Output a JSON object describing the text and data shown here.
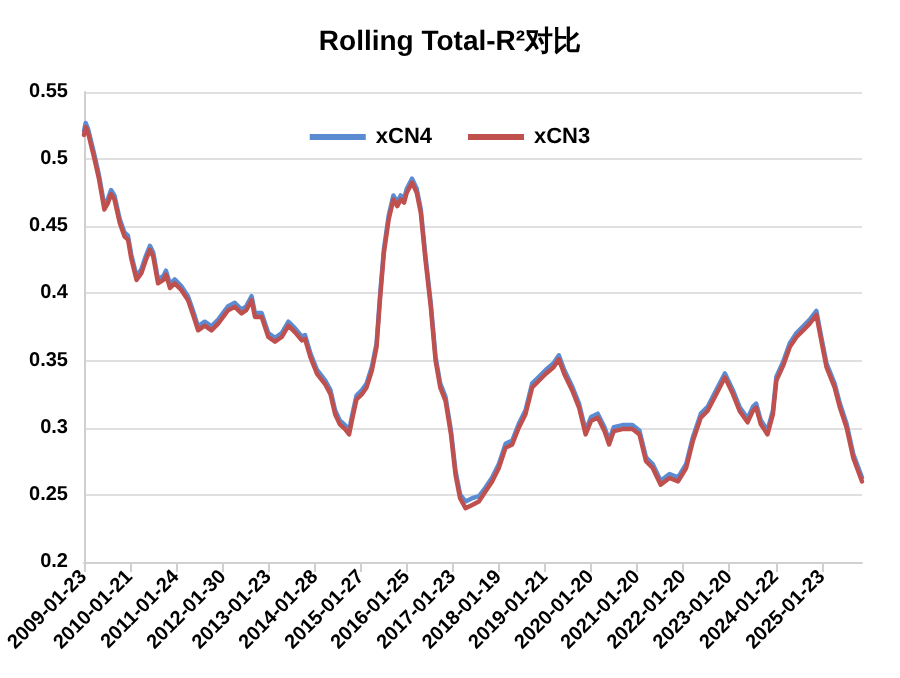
{
  "chart_data": {
    "type": "line",
    "title": "Rolling Total-R²对比",
    "x": [
      "2009-01-23",
      "2009-02-05",
      "2009-02-23",
      "2009-04-16",
      "2009-05-22",
      "2009-07-03",
      "2009-07-30",
      "2009-08-25",
      "2009-09-21",
      "2009-11-02",
      "2009-12-09",
      "2010-01-06",
      "2010-02-01",
      "2010-03-15",
      "2010-04-22",
      "2010-05-28",
      "2010-06-29",
      "2010-07-25",
      "2010-09-01",
      "2010-10-13",
      "2010-11-03",
      "2010-12-05",
      "2011-01-11",
      "2011-03-04",
      "2011-04-26",
      "2011-06-02",
      "2011-07-15",
      "2011-09-06",
      "2011-10-29",
      "2011-12-21",
      "2012-03-09",
      "2012-05-01",
      "2012-06-23",
      "2012-07-30",
      "2012-09-11",
      "2012-10-07",
      "2012-11-29",
      "2013-01-21",
      "2013-03-15",
      "2013-05-07",
      "2013-06-29",
      "2013-08-21",
      "2013-10-13",
      "2013-11-08",
      "2013-12-20",
      "2014-02-11",
      "2014-04-15",
      "2014-05-28",
      "2014-07-04",
      "2014-08-10",
      "2014-09-21",
      "2014-10-23",
      "2014-11-13",
      "2014-12-20",
      "2015-02-01",
      "2015-03-10",
      "2015-04-21",
      "2015-05-28",
      "2015-06-24",
      "2015-07-25",
      "2015-09-01",
      "2015-10-08",
      "2015-11-08",
      "2015-12-05",
      "2016-01-01",
      "2016-01-22",
      "2016-03-04",
      "2016-04-10",
      "2016-05-12",
      "2016-06-18",
      "2016-07-30",
      "2016-09-06",
      "2016-10-13",
      "2016-11-24",
      "2017-01-06",
      "2017-02-11",
      "2017-03-19",
      "2017-05-01",
      "2017-06-23",
      "2017-08-15",
      "2017-10-06",
      "2017-11-28",
      "2018-01-20",
      "2018-03-14",
      "2018-05-06",
      "2018-06-27",
      "2018-08-19",
      "2018-10-11",
      "2018-12-03",
      "2019-01-25",
      "2019-03-29",
      "2019-05-10",
      "2019-06-22",
      "2019-08-25",
      "2019-10-17",
      "2019-12-08",
      "2020-01-20",
      "2020-03-13",
      "2020-05-05",
      "2020-06-11",
      "2020-07-18",
      "2020-09-25",
      "2020-12-13",
      "2021-02-06",
      "2021-03-30",
      "2021-05-22",
      "2021-07-24",
      "2021-10-02",
      "2021-12-09",
      "2022-02-11",
      "2022-04-05",
      "2022-06-07",
      "2022-07-30",
      "2022-10-07",
      "2022-12-15",
      "2023-02-16",
      "2023-04-10",
      "2023-06-12",
      "2023-07-24",
      "2023-08-19",
      "2023-09-25",
      "2023-11-17",
      "2023-12-30",
      "2024-01-26",
      "2024-03-19",
      "2024-05-11",
      "2024-07-03",
      "2024-08-25",
      "2024-10-16",
      "2024-12-08",
      "2025-01-15",
      "2025-02-26",
      "2025-05-01",
      "2025-06-12",
      "2025-08-04",
      "2025-09-26",
      "2025-12-04"
    ],
    "series": [
      {
        "name": "xCN4",
        "color": "#5b8bd0",
        "values": [
          0.521,
          0.527,
          0.523,
          0.503,
          0.488,
          0.4655,
          0.47,
          0.477,
          0.473,
          0.4555,
          0.4455,
          0.443,
          0.429,
          0.413,
          0.418,
          0.428,
          0.4355,
          0.4305,
          0.4105,
          0.413,
          0.417,
          0.407,
          0.4105,
          0.4055,
          0.398,
          0.388,
          0.3755,
          0.379,
          0.3755,
          0.3805,
          0.3905,
          0.393,
          0.388,
          0.3905,
          0.398,
          0.3855,
          0.3855,
          0.3705,
          0.367,
          0.3705,
          0.379,
          0.374,
          0.368,
          0.369,
          0.3555,
          0.343,
          0.3355,
          0.328,
          0.313,
          0.3055,
          0.302,
          0.298,
          0.308,
          0.324,
          0.328,
          0.333,
          0.3455,
          0.363,
          0.398,
          0.433,
          0.458,
          0.473,
          0.468,
          0.473,
          0.4705,
          0.478,
          0.4855,
          0.478,
          0.463,
          0.428,
          0.393,
          0.353,
          0.333,
          0.323,
          0.298,
          0.268,
          0.2505,
          0.245,
          0.2475,
          0.249,
          0.2555,
          0.263,
          0.273,
          0.288,
          0.2905,
          0.303,
          0.313,
          0.333,
          0.338,
          0.343,
          0.348,
          0.354,
          0.343,
          0.3305,
          0.318,
          0.298,
          0.308,
          0.3105,
          0.3005,
          0.2905,
          0.3005,
          0.302,
          0.302,
          0.298,
          0.278,
          0.273,
          0.2605,
          0.2655,
          0.263,
          0.273,
          0.293,
          0.3105,
          0.3155,
          0.328,
          0.3405,
          0.328,
          0.3155,
          0.307,
          0.3155,
          0.318,
          0.3055,
          0.298,
          0.313,
          0.338,
          0.349,
          0.363,
          0.3705,
          0.3755,
          0.3805,
          0.387,
          0.368,
          0.348,
          0.333,
          0.318,
          0.303,
          0.2805,
          0.263
        ]
      },
      {
        "name": "xCN3",
        "color": "#c0504d",
        "values": [
          0.518,
          0.524,
          0.52,
          0.5,
          0.485,
          0.4625,
          0.467,
          0.474,
          0.47,
          0.4525,
          0.4425,
          0.44,
          0.426,
          0.41,
          0.415,
          0.425,
          0.4325,
          0.4275,
          0.4075,
          0.41,
          0.414,
          0.404,
          0.4075,
          0.4025,
          0.395,
          0.385,
          0.3725,
          0.376,
          0.3725,
          0.3775,
          0.3875,
          0.39,
          0.385,
          0.3875,
          0.395,
          0.3825,
          0.3825,
          0.3675,
          0.364,
          0.3675,
          0.376,
          0.371,
          0.365,
          0.366,
          0.3525,
          0.34,
          0.3325,
          0.325,
          0.31,
          0.3025,
          0.299,
          0.295,
          0.305,
          0.321,
          0.325,
          0.33,
          0.3425,
          0.36,
          0.395,
          0.43,
          0.455,
          0.47,
          0.465,
          0.47,
          0.4675,
          0.475,
          0.4825,
          0.475,
          0.46,
          0.425,
          0.39,
          0.35,
          0.33,
          0.32,
          0.295,
          0.265,
          0.2475,
          0.24,
          0.2425,
          0.245,
          0.2525,
          0.26,
          0.27,
          0.285,
          0.2875,
          0.3,
          0.31,
          0.33,
          0.335,
          0.34,
          0.345,
          0.351,
          0.34,
          0.3275,
          0.315,
          0.295,
          0.305,
          0.3075,
          0.2975,
          0.2875,
          0.2975,
          0.299,
          0.299,
          0.295,
          0.275,
          0.27,
          0.2575,
          0.2625,
          0.26,
          0.27,
          0.29,
          0.3075,
          0.3125,
          0.325,
          0.3375,
          0.325,
          0.3125,
          0.304,
          0.3125,
          0.315,
          0.3025,
          0.295,
          0.31,
          0.335,
          0.346,
          0.36,
          0.3675,
          0.3725,
          0.3775,
          0.384,
          0.365,
          0.345,
          0.33,
          0.315,
          0.3,
          0.2775,
          0.26
        ]
      }
    ],
    "xlim": [
      "2009-01-23",
      "2025-12-04"
    ],
    "xticks": [
      "2009-01-23",
      "2010-01-21",
      "2011-01-24",
      "2012-01-30",
      "2013-01-23",
      "2014-01-28",
      "2015-01-27",
      "2016-01-25",
      "2017-01-23",
      "2018-01-19",
      "2019-01-21",
      "2020-01-20",
      "2021-01-20",
      "2022-01-20",
      "2023-01-20",
      "2024-01-22",
      "2025-01-23"
    ],
    "ylim": [
      0.2,
      0.55
    ],
    "yticks": [
      0.2,
      0.25,
      0.3,
      0.35,
      0.4,
      0.45,
      0.5,
      0.55
    ],
    "grid": "y",
    "legend": "top",
    "marker": "none",
    "line_style": "solid"
  }
}
